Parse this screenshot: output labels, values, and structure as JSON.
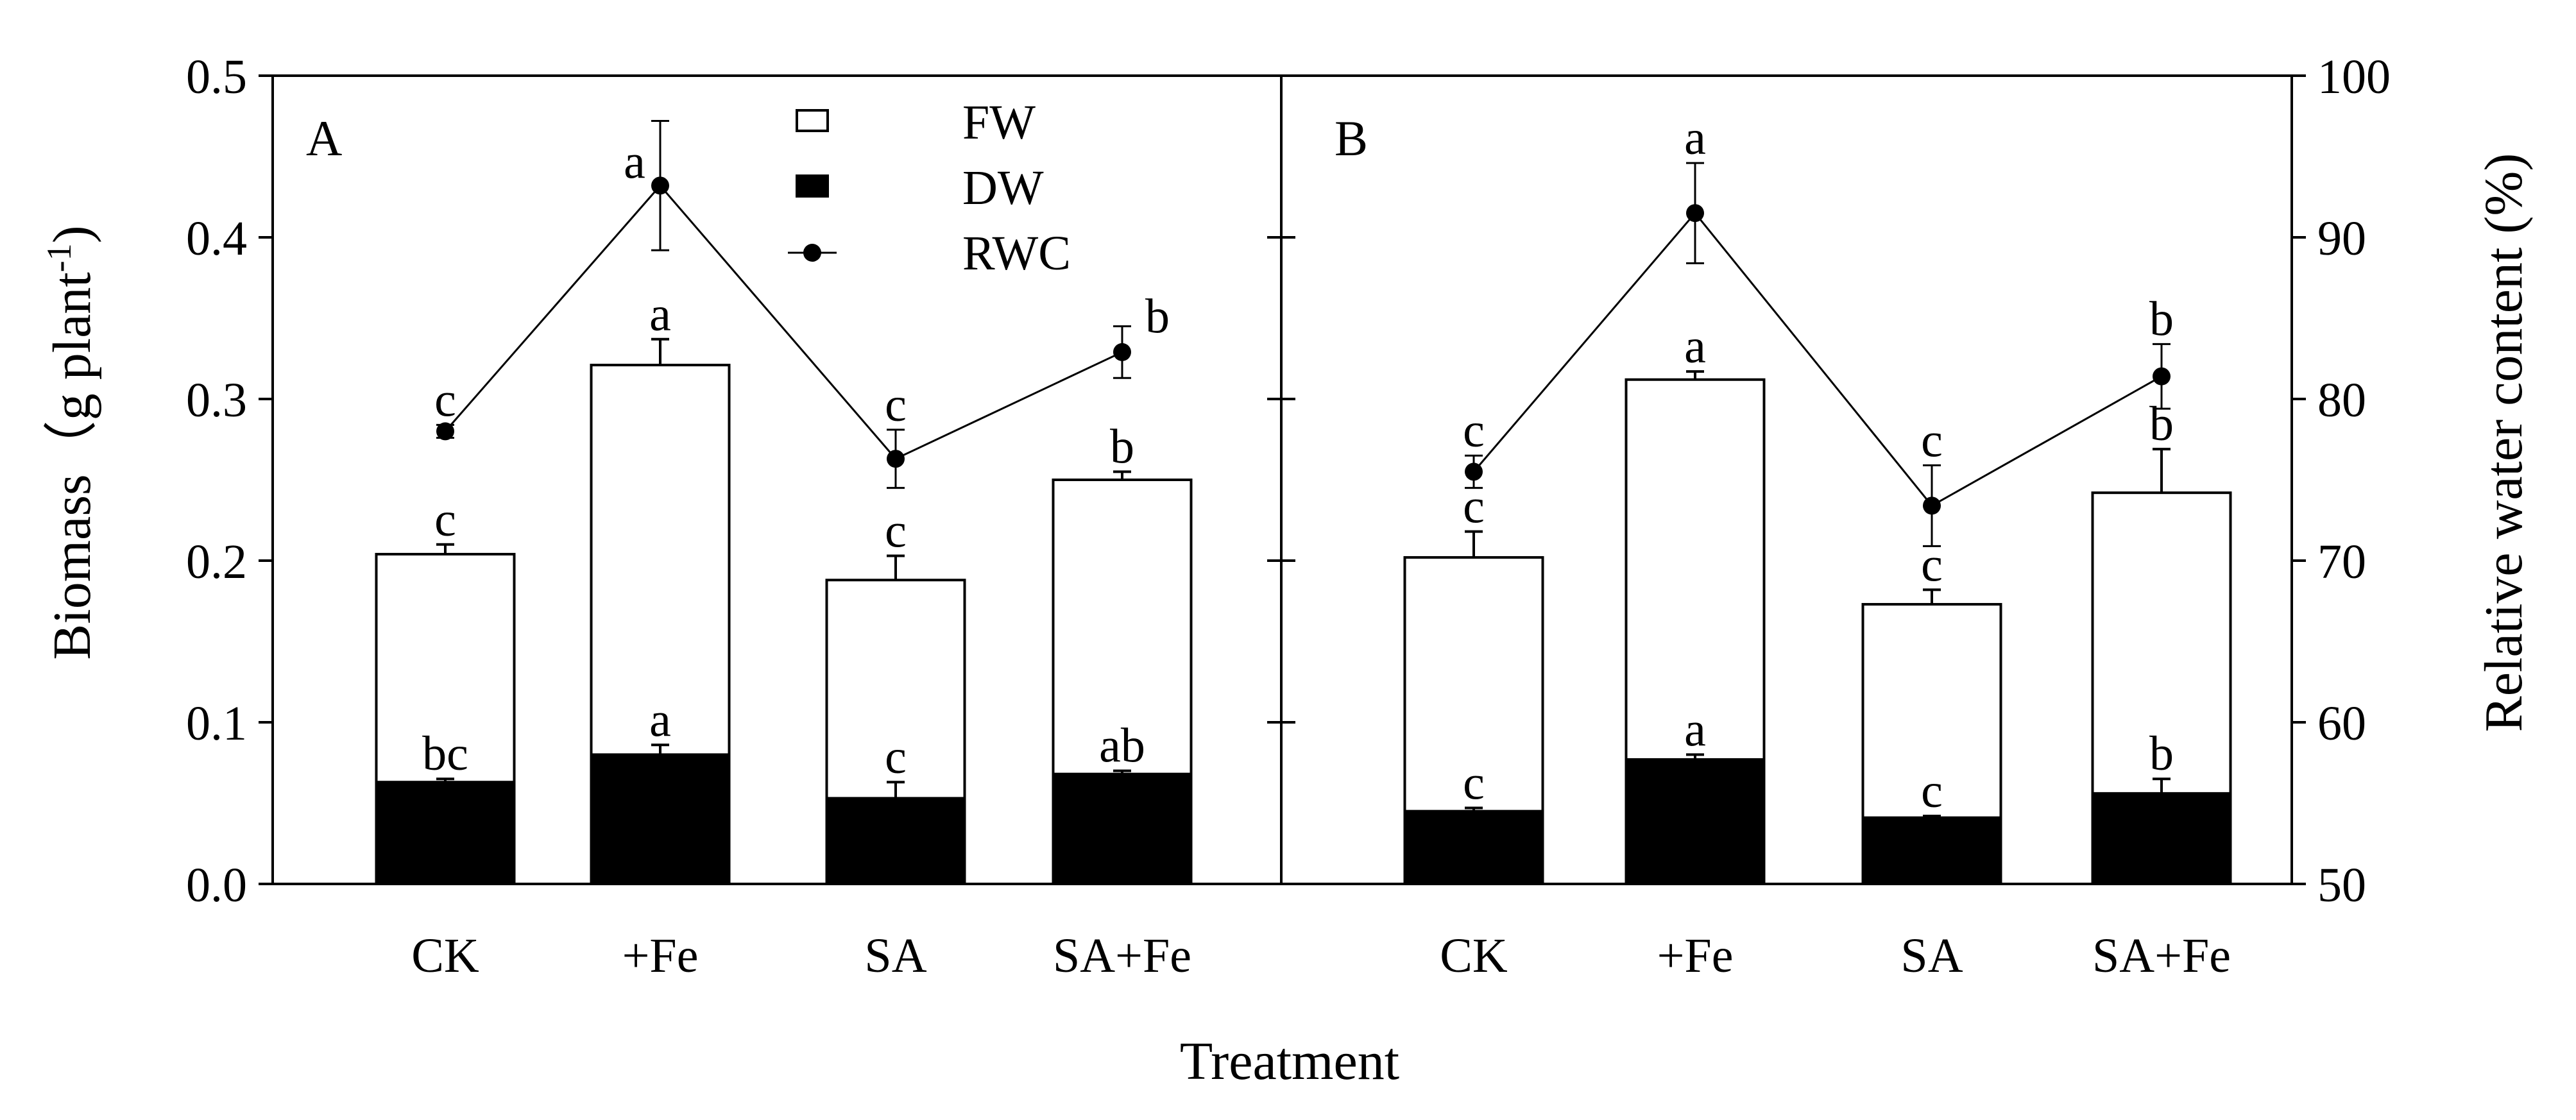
{
  "chart_data": {
    "type": "bar",
    "stacked_overlay": true,
    "xlabel": "Treatment",
    "ylabel_left": "Biomass（g plant",
    "ylabel_left_sup": "-1",
    "ylabel_left_close": ")",
    "ylabel_right": "Relative water content (%)",
    "ylim_left": [
      0,
      0.5
    ],
    "ylim_right": [
      50,
      100
    ],
    "yticks_left": [
      "0.0",
      "0.1",
      "0.2",
      "0.3",
      "0.4",
      "0.5"
    ],
    "yticks_right": [
      "50",
      "60",
      "70",
      "80",
      "90",
      "100"
    ],
    "categories": [
      "CK",
      "+Fe",
      "SA",
      "SA+Fe"
    ],
    "legend": {
      "position": "top-center of panel A",
      "entries": [
        {
          "name": "FW",
          "symbol": "open-bar"
        },
        {
          "name": "DW",
          "symbol": "filled-bar"
        },
        {
          "name": "RWC",
          "symbol": "line-dot"
        }
      ]
    },
    "panels": [
      {
        "label": "A",
        "series": [
          {
            "name": "FW",
            "axis": "left",
            "values": [
              0.204,
              0.321,
              0.188,
              0.25
            ],
            "errors": [
              0.006,
              0.016,
              0.015,
              0.005
            ],
            "letters": [
              "c",
              "a",
              "c",
              "b"
            ]
          },
          {
            "name": "DW",
            "axis": "left",
            "values": [
              0.063,
              0.08,
              0.053,
              0.068
            ],
            "errors": [
              0.002,
              0.006,
              0.01,
              0.002
            ],
            "letters": [
              "bc",
              "a",
              "c",
              "ab"
            ]
          },
          {
            "name": "RWC",
            "axis": "right",
            "values": [
              78.0,
              93.2,
              76.3,
              82.9
            ],
            "errors": [
              0.4,
              4.0,
              1.8,
              1.6
            ],
            "letters": [
              "c",
              "a",
              "c",
              "b"
            ]
          }
        ]
      },
      {
        "label": "B",
        "series": [
          {
            "name": "FW",
            "axis": "left",
            "values": [
              0.202,
              0.312,
              0.173,
              0.242
            ],
            "errors": [
              0.016,
              0.005,
              0.009,
              0.027
            ],
            "letters": [
              "c",
              "a",
              "c",
              "b"
            ]
          },
          {
            "name": "DW",
            "axis": "left",
            "values": [
              0.045,
              0.077,
              0.041,
              0.056
            ],
            "errors": [
              0.002,
              0.003,
              0.001,
              0.009
            ],
            "letters": [
              "c",
              "a",
              "c",
              "b"
            ]
          },
          {
            "name": "RWC",
            "axis": "right",
            "values": [
              75.5,
              91.5,
              73.4,
              81.4
            ],
            "errors": [
              1.0,
              3.1,
              2.5,
              2.0
            ],
            "letters": [
              "c",
              "a",
              "c",
              "b"
            ]
          }
        ]
      }
    ]
  }
}
